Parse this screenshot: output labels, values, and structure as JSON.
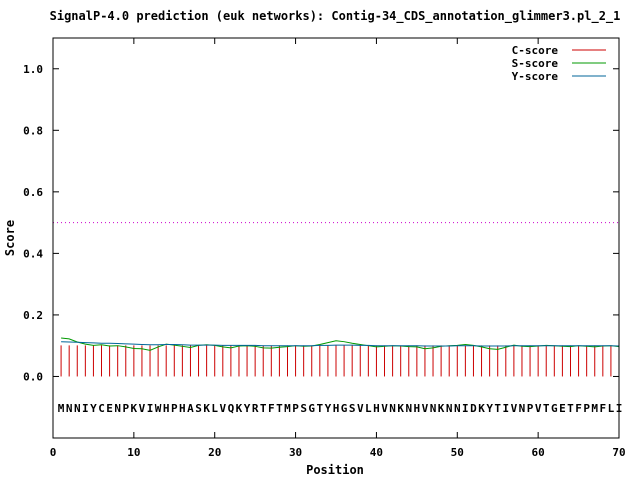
{
  "chart_data": {
    "type": "line",
    "title": "SignalP-4.0 prediction (euk networks): Contig-34_CDS_annotation_glimmer3.pl_2_1",
    "xlabel": "Position",
    "ylabel": "Score",
    "xlim": [
      0,
      70
    ],
    "ylim": [
      -0.2,
      1.1
    ],
    "xticks": [
      0,
      10,
      20,
      30,
      40,
      50,
      60,
      70
    ],
    "yticks": [
      0.0,
      0.2,
      0.4,
      0.6,
      0.8,
      1.0
    ],
    "xtick_labels": [
      "0",
      "10",
      "20",
      "30",
      "40",
      "50",
      "60",
      "70"
    ],
    "ytick_labels": [
      "0.0",
      "0.2",
      "0.4",
      "0.6",
      "0.8",
      "1.0"
    ],
    "legend_position": "top-right",
    "threshold": {
      "value": 0.5,
      "color": "#cc00cc"
    },
    "sequence": "MNNIYCENPKVIWHPHASKLVQKYRTFTMPSGTYHGSVLHVNKNHVNKNNIDKYTIVNPVTGETFPMFLI",
    "series": [
      {
        "name": "C-score",
        "style": "impulse",
        "color": "#cc0000",
        "x": [
          1,
          2,
          3,
          4,
          5,
          6,
          7,
          8,
          9,
          10,
          11,
          12,
          13,
          14,
          15,
          16,
          17,
          18,
          19,
          20,
          21,
          22,
          23,
          24,
          25,
          26,
          27,
          28,
          29,
          30,
          31,
          32,
          33,
          34,
          35,
          36,
          37,
          38,
          39,
          40,
          41,
          42,
          43,
          44,
          45,
          46,
          47,
          48,
          49,
          50,
          51,
          52,
          53,
          54,
          55,
          56,
          57,
          58,
          59,
          60,
          61,
          62,
          63,
          64,
          65,
          66,
          67,
          68,
          69,
          70
        ],
        "values": [
          0.101,
          0.101,
          0.101,
          0.101,
          0.101,
          0.101,
          0.101,
          0.101,
          0.101,
          0.101,
          0.101,
          0.101,
          0.101,
          0.101,
          0.101,
          0.101,
          0.101,
          0.101,
          0.101,
          0.101,
          0.101,
          0.101,
          0.101,
          0.101,
          0.101,
          0.101,
          0.101,
          0.101,
          0.101,
          0.101,
          0.101,
          0.101,
          0.101,
          0.101,
          0.101,
          0.101,
          0.101,
          0.101,
          0.101,
          0.101,
          0.101,
          0.101,
          0.101,
          0.101,
          0.101,
          0.101,
          0.101,
          0.101,
          0.101,
          0.101,
          0.101,
          0.101,
          0.101,
          0.101,
          0.101,
          0.101,
          0.101,
          0.101,
          0.101,
          0.101,
          0.101,
          0.101,
          0.101,
          0.101,
          0.101,
          0.101,
          0.101,
          0.101,
          0.101,
          0.101
        ]
      },
      {
        "name": "S-score",
        "style": "line",
        "color": "#009900",
        "x": [
          1,
          2,
          3,
          4,
          5,
          6,
          7,
          8,
          9,
          10,
          11,
          12,
          13,
          14,
          15,
          16,
          17,
          18,
          19,
          20,
          21,
          22,
          23,
          24,
          25,
          26,
          27,
          28,
          29,
          30,
          31,
          32,
          33,
          34,
          35,
          36,
          37,
          38,
          39,
          40,
          41,
          42,
          43,
          44,
          45,
          46,
          47,
          48,
          49,
          50,
          51,
          52,
          53,
          54,
          55,
          56,
          57,
          58,
          59,
          60,
          61,
          62,
          63,
          64,
          65,
          66,
          67,
          68,
          69,
          70
        ],
        "values": [
          0.125,
          0.122,
          0.112,
          0.105,
          0.101,
          0.103,
          0.099,
          0.1,
          0.096,
          0.091,
          0.09,
          0.085,
          0.096,
          0.105,
          0.102,
          0.098,
          0.094,
          0.101,
          0.103,
          0.101,
          0.096,
          0.093,
          0.099,
          0.1,
          0.098,
          0.093,
          0.092,
          0.095,
          0.097,
          0.1,
          0.098,
          0.099,
          0.104,
          0.11,
          0.116,
          0.113,
          0.108,
          0.104,
          0.1,
          0.096,
          0.098,
          0.1,
          0.099,
          0.097,
          0.096,
          0.09,
          0.093,
          0.098,
          0.1,
          0.101,
          0.104,
          0.101,
          0.096,
          0.09,
          0.088,
          0.095,
          0.102,
          0.098,
          0.097,
          0.099,
          0.101,
          0.1,
          0.098,
          0.097,
          0.1,
          0.098,
          0.096,
          0.099,
          0.1,
          0.097
        ]
      },
      {
        "name": "Y-score",
        "style": "line",
        "color": "#006699",
        "x": [
          1,
          2,
          3,
          4,
          5,
          6,
          7,
          8,
          9,
          10,
          11,
          12,
          13,
          14,
          15,
          16,
          17,
          18,
          19,
          20,
          21,
          22,
          23,
          24,
          25,
          26,
          27,
          28,
          29,
          30,
          31,
          32,
          33,
          34,
          35,
          36,
          37,
          38,
          39,
          40,
          41,
          42,
          43,
          44,
          45,
          46,
          47,
          48,
          49,
          50,
          51,
          52,
          53,
          54,
          55,
          56,
          57,
          58,
          59,
          60,
          61,
          62,
          63,
          64,
          65,
          66,
          67,
          68,
          69,
          70
        ],
        "values": [
          0.113,
          0.112,
          0.111,
          0.11,
          0.109,
          0.108,
          0.108,
          0.107,
          0.106,
          0.105,
          0.104,
          0.103,
          0.103,
          0.104,
          0.104,
          0.103,
          0.102,
          0.102,
          0.102,
          0.102,
          0.101,
          0.101,
          0.101,
          0.101,
          0.101,
          0.1,
          0.1,
          0.1,
          0.1,
          0.1,
          0.1,
          0.1,
          0.101,
          0.101,
          0.102,
          0.102,
          0.102,
          0.101,
          0.101,
          0.1,
          0.1,
          0.1,
          0.1,
          0.1,
          0.1,
          0.099,
          0.099,
          0.099,
          0.099,
          0.1,
          0.1,
          0.1,
          0.099,
          0.099,
          0.099,
          0.099,
          0.1,
          0.1,
          0.1,
          0.1,
          0.1,
          0.1,
          0.1,
          0.1,
          0.1,
          0.1,
          0.1,
          0.1,
          0.1,
          0.099
        ]
      }
    ]
  }
}
